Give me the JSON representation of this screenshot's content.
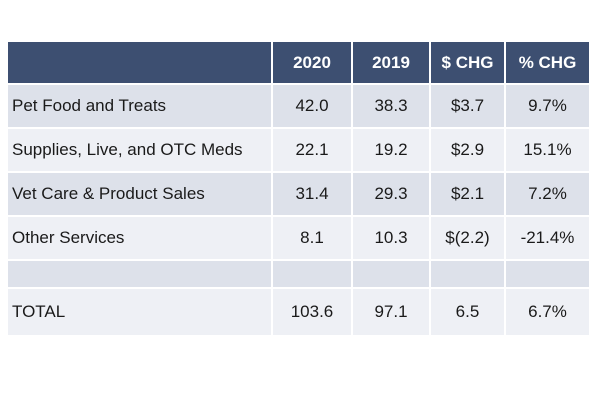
{
  "chart_data": {
    "type": "table",
    "columns": [
      "",
      "2020",
      "2019",
      "$ CHG",
      "% CHG"
    ],
    "rows": [
      {
        "label": "Pet Food and Treats",
        "y2020": "42.0",
        "y2019": "38.3",
        "chg": "$3.7",
        "pct": "9.7%"
      },
      {
        "label": "Supplies, Live, and OTC Meds",
        "y2020": "22.1",
        "y2019": "19.2",
        "chg": "$2.9",
        "pct": "15.1%"
      },
      {
        "label": "Vet Care & Product Sales",
        "y2020": "31.4",
        "y2019": "29.3",
        "chg": "$2.1",
        "pct": "7.2%"
      },
      {
        "label": "Other Services",
        "y2020": "8.1",
        "y2019": "10.3",
        "chg": "$(2.2)",
        "pct": "-21.4%"
      },
      {
        "label": "",
        "y2020": "",
        "y2019": "",
        "chg": "",
        "pct": ""
      },
      {
        "label": "TOTAL",
        "y2020": "103.6",
        "y2019": "97.1",
        "chg": "6.5",
        "pct": "6.7%"
      }
    ]
  },
  "colors": {
    "header_bg": "#3d4f71",
    "header_text": "#ffffff",
    "row_shade": "#dde1ea",
    "row_light": "#eef0f5"
  }
}
